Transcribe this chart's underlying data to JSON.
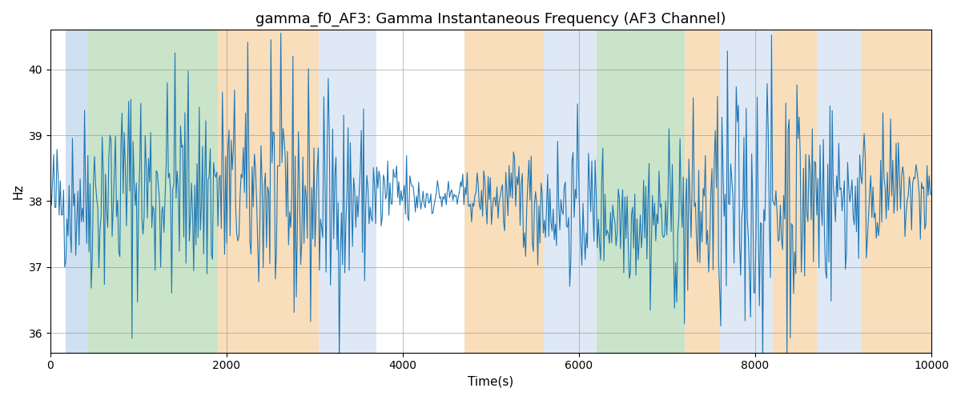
{
  "title": "gamma_f0_AF3: Gamma Instantaneous Frequency (AF3 Channel)",
  "xlabel": "Time(s)",
  "ylabel": "Hz",
  "xlim": [
    0,
    10000
  ],
  "ylim": [
    35.7,
    40.6
  ],
  "yticks": [
    36,
    37,
    38,
    39,
    40
  ],
  "xticks": [
    0,
    2000,
    4000,
    6000,
    8000,
    10000
  ],
  "line_color": "#1f77b4",
  "line_width": 0.8,
  "n_points": 800,
  "seed": 42,
  "bands": [
    {
      "xmin": 170,
      "xmax": 430,
      "color": "#b0cce8",
      "alpha": 0.6
    },
    {
      "xmin": 430,
      "xmax": 1900,
      "color": "#9ecf9e",
      "alpha": 0.55
    },
    {
      "xmin": 1900,
      "xmax": 3050,
      "color": "#f5c990",
      "alpha": 0.6
    },
    {
      "xmin": 3050,
      "xmax": 3700,
      "color": "#c5d8ed",
      "alpha": 0.55
    },
    {
      "xmin": 3700,
      "xmax": 4700,
      "color": "#ffffff",
      "alpha": 0.0
    },
    {
      "xmin": 4700,
      "xmax": 5600,
      "color": "#f5c990",
      "alpha": 0.6
    },
    {
      "xmin": 5600,
      "xmax": 6200,
      "color": "#c5d8ed",
      "alpha": 0.55
    },
    {
      "xmin": 6200,
      "xmax": 7200,
      "color": "#9ecf9e",
      "alpha": 0.55
    },
    {
      "xmin": 7200,
      "xmax": 7600,
      "color": "#f5c990",
      "alpha": 0.6
    },
    {
      "xmin": 7600,
      "xmax": 8200,
      "color": "#c5d8ed",
      "alpha": 0.55
    },
    {
      "xmin": 8200,
      "xmax": 8700,
      "color": "#f5c990",
      "alpha": 0.6
    },
    {
      "xmin": 8700,
      "xmax": 9200,
      "color": "#c5d8ed",
      "alpha": 0.55
    },
    {
      "xmin": 9200,
      "xmax": 10000,
      "color": "#f5c990",
      "alpha": 0.6
    }
  ]
}
